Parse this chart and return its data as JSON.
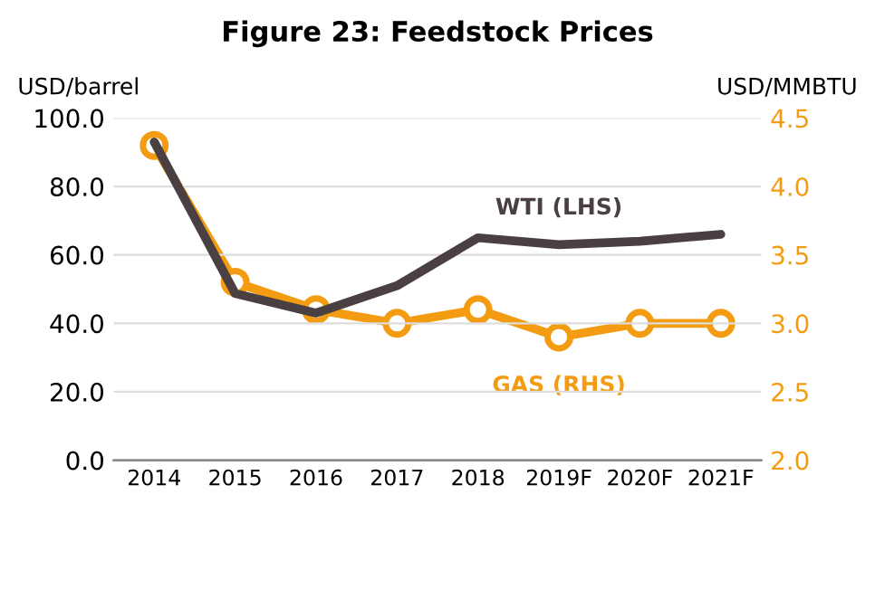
{
  "chart_data": {
    "type": "line",
    "title": "Figure 23: Feedstock Prices",
    "ylabel": "USD/barrel",
    "y2label": "USD/MMBTU",
    "categories": [
      "2014",
      "2015",
      "2016",
      "2017",
      "2018",
      "2019F",
      "2020F",
      "2021F"
    ],
    "series": [
      {
        "name": "WTI (LHS)",
        "color": "#4a4042",
        "values": [
          93,
          48.7,
          43,
          51,
          65,
          63,
          64,
          66
        ],
        "marker": "none"
      },
      {
        "name": "GAS (RHS)",
        "color": "#f39c12",
        "axis": "y2",
        "values": [
          4.3,
          3.3,
          3.1,
          3.0,
          3.1,
          2.9,
          3.0,
          3.0
        ],
        "marker": "circle"
      }
    ],
    "ylim": [
      0,
      100
    ],
    "yticks": [
      {
        "value": 0,
        "label": "0.0"
      },
      {
        "value": 20,
        "label": "20.0"
      },
      {
        "value": 40,
        "label": "40.0"
      },
      {
        "value": 60,
        "label": "60.0"
      },
      {
        "value": 80,
        "label": "80.0"
      },
      {
        "value": 100,
        "label": "100.0"
      }
    ],
    "y2lim": [
      2,
      4.5
    ],
    "y2ticks": [
      {
        "value": 2,
        "label": "2.0"
      },
      {
        "value": 2.5,
        "label": "2.5"
      },
      {
        "value": 3,
        "label": "3.0"
      },
      {
        "value": 3.5,
        "label": "3.5"
      },
      {
        "value": 4,
        "label": "4.0"
      },
      {
        "value": 4.5,
        "label": "4.5"
      }
    ],
    "grid": "y",
    "legend": false
  }
}
